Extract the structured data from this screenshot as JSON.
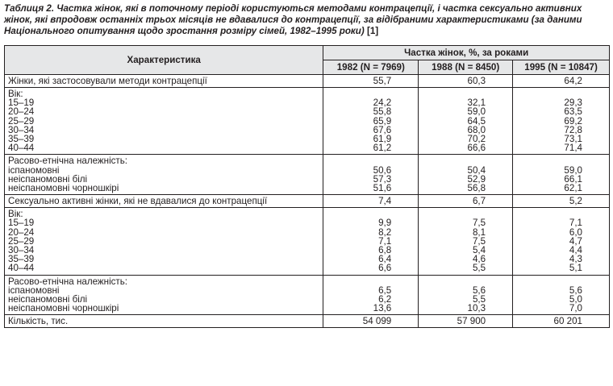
{
  "caption": {
    "text": "Таблиця 2. Частка жінок, які в поточному періоді користуються методами контрацепції, і частка сексуально активних жінок, які впродовж останніх трьох місяців не вдавалися до контрацепції, за відібраними характеристиками (за даними Національного опитування щодо зростання розміру сімей, 1982–1995 роки) ",
    "ref": "[1]"
  },
  "table": {
    "header": {
      "characteristic": "Характеристика",
      "group": "Частка жінок, %, за роками",
      "years": [
        "1982 (N = 7969)",
        "1988 (N = 8450)",
        "1995 (N = 10847)"
      ]
    },
    "row_using": {
      "label": "Жінки, які застосовували методи контрацепції",
      "values": [
        "55,7",
        "60,3",
        "64,2"
      ]
    },
    "age1": {
      "title": "Вік:",
      "labels": [
        "15–19",
        "20–24",
        "25–29",
        "30–34",
        "35–39",
        "40–44"
      ],
      "col1": [
        "24,2",
        "55,8",
        "65,9",
        "67,6",
        "61,9",
        "61,2"
      ],
      "col2": [
        "32,1",
        "59,0",
        "64,5",
        "68,0",
        "70,2",
        "66,6"
      ],
      "col3": [
        "29,3",
        "63,5",
        "69,2",
        "72,8",
        "73,1",
        "71,4"
      ]
    },
    "race1": {
      "title": "Расово-етнічна належність:",
      "labels": [
        "іспаномовні",
        "неіспаномовні білі",
        "неіспаномовні чорношкірі"
      ],
      "col1": [
        "50,6",
        "57,3",
        "51,6"
      ],
      "col2": [
        "50,4",
        "52,9",
        "56,8"
      ],
      "col3": [
        "59,0",
        "66,1",
        "62,1"
      ]
    },
    "row_active": {
      "label": "Сексуально активні жінки, які  не вдавалися до контрацепції",
      "values": [
        "7,4",
        "6,7",
        "5,2"
      ]
    },
    "age2": {
      "title": "Вік:",
      "labels": [
        "15–19",
        "20–24",
        "25–29",
        "30–34",
        "35–39",
        "40–44"
      ],
      "col1": [
        "9,9",
        "8,2",
        "7,1",
        "6,8",
        "6,4",
        "6,6"
      ],
      "col2": [
        "7,5",
        "8,1",
        "7,5",
        "5,4",
        "4,6",
        "5,5"
      ],
      "col3": [
        "7,1",
        "6,0",
        "4,7",
        "4,4",
        "4,3",
        "5,1"
      ]
    },
    "race2": {
      "title": "Расово-етнічна належність:",
      "labels": [
        "іспаномовні",
        "неіспаномовні білі",
        "неіспаномовні чорношкірі"
      ],
      "col1": [
        "6,5",
        "6,2",
        "13,6"
      ],
      "col2": [
        "5,6",
        "5,5",
        "10,3"
      ],
      "col3": [
        "5,6",
        "5,0",
        "7,0"
      ]
    },
    "row_count": {
      "label": "Кількість, тис.",
      "values": [
        "54 099",
        "57 900",
        "60 201"
      ]
    }
  }
}
